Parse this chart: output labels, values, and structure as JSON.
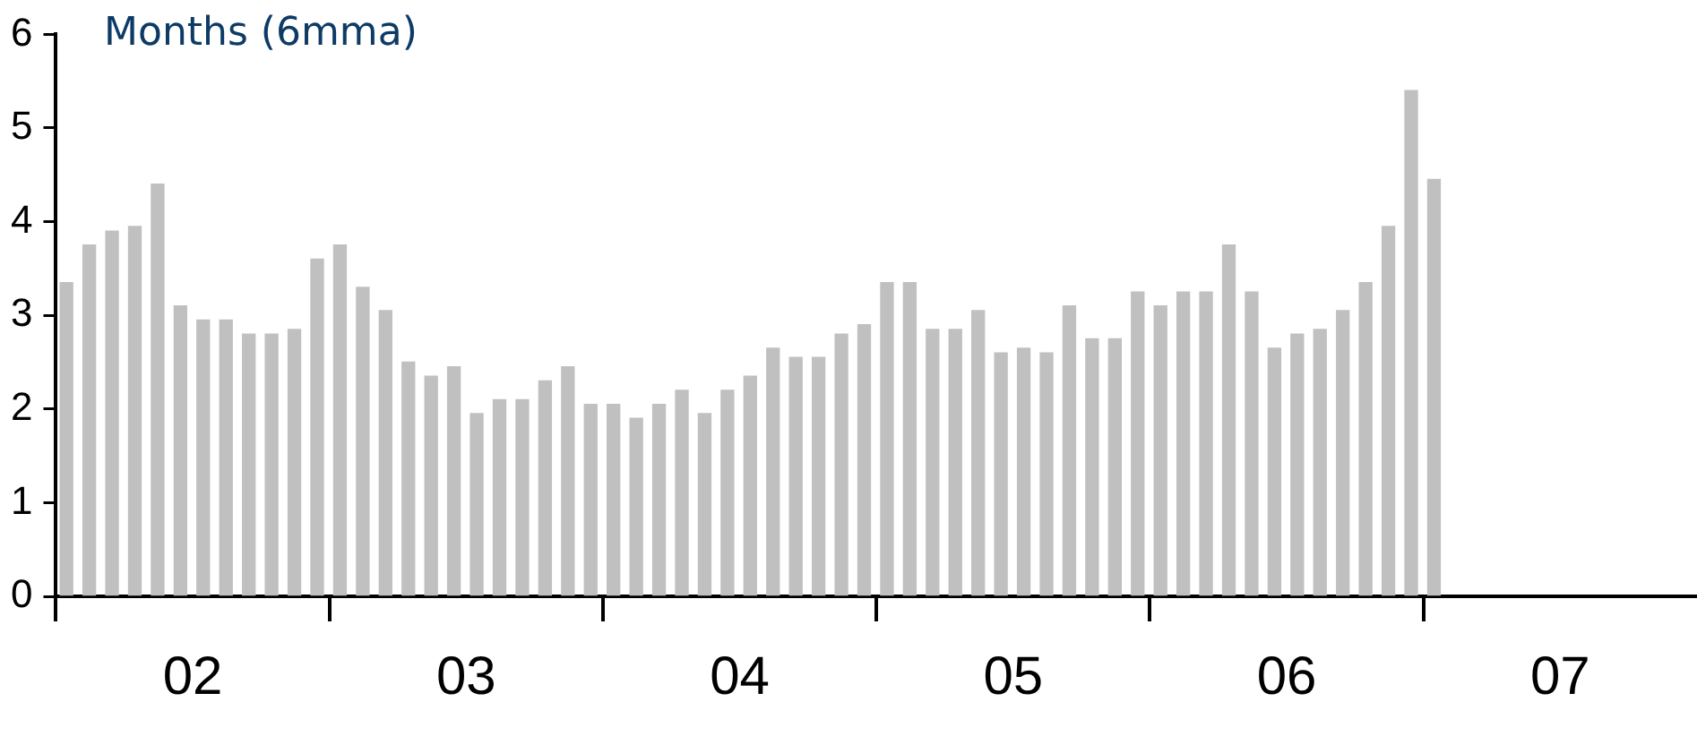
{
  "chart_data": {
    "type": "bar",
    "ylabel": "Months (6mma)",
    "x": [
      "2002-01-15",
      "2002-02-15",
      "2002-03-15",
      "2002-04-15",
      "2002-05-15",
      "2002-06-15",
      "2002-07-15",
      "2002-08-15",
      "2002-09-15",
      "2002-10-15",
      "2002-11-15",
      "2002-12-15",
      "2003-01-15",
      "2003-02-15",
      "2003-03-15",
      "2003-04-15",
      "2003-05-15",
      "2003-06-15",
      "2003-07-15",
      "2003-08-15",
      "2003-09-15",
      "2003-10-15",
      "2003-11-15",
      "2003-12-15",
      "2004-01-15",
      "2004-02-15",
      "2004-03-15",
      "2004-04-15",
      "2004-05-15",
      "2004-06-15",
      "2004-07-15",
      "2004-08-15",
      "2004-09-15",
      "2004-10-15",
      "2004-11-15",
      "2004-12-15",
      "2005-01-15",
      "2005-02-15",
      "2005-03-15",
      "2005-04-15",
      "2005-05-15",
      "2005-06-15",
      "2005-07-15",
      "2005-08-15",
      "2005-09-15",
      "2005-10-15",
      "2005-11-15",
      "2005-12-15",
      "2006-01-15",
      "2006-02-15",
      "2006-03-15",
      "2006-04-15",
      "2006-05-15",
      "2006-06-15",
      "2006-07-15",
      "2006-08-15",
      "2006-09-15",
      "2006-10-15",
      "2006-11-15",
      "2006-12-15",
      "2007-01-15"
    ],
    "values": [
      3.35,
      3.75,
      3.9,
      3.95,
      4.4,
      3.1,
      2.95,
      2.95,
      2.8,
      2.8,
      2.85,
      3.6,
      3.75,
      3.3,
      3.05,
      2.5,
      2.35,
      2.45,
      1.95,
      2.1,
      2.1,
      2.3,
      2.45,
      2.05,
      2.05,
      1.9,
      2.05,
      2.2,
      1.95,
      2.2,
      2.35,
      2.65,
      2.55,
      2.55,
      2.8,
      2.9,
      3.35,
      3.35,
      2.85,
      2.85,
      3.05,
      2.6,
      2.65,
      2.6,
      3.1,
      2.75,
      2.75,
      3.25,
      3.1,
      3.25,
      3.25,
      3.75,
      3.25,
      2.65,
      2.8,
      2.85,
      3.05,
      3.35,
      3.95,
      5.4,
      4.45
    ],
    "color": "#c0c0c0",
    "xlim": [
      "2002-01",
      "2008-01"
    ],
    "xticks": [
      {
        "value": "2002-01",
        "label": null
      },
      {
        "value": "2002-07",
        "label": "02"
      },
      {
        "value": "2003-01",
        "label": null
      },
      {
        "value": "2003-07",
        "label": "03"
      },
      {
        "value": "2004-01",
        "label": null
      },
      {
        "value": "2004-07",
        "label": "04"
      },
      {
        "value": "2005-01",
        "label": null
      },
      {
        "value": "2005-07",
        "label": "05"
      },
      {
        "value": "2006-01",
        "label": null
      },
      {
        "value": "2006-07",
        "label": "06"
      },
      {
        "value": "2007-01",
        "label": null
      },
      {
        "value": "2007-07",
        "label": "07"
      }
    ],
    "ylim": [
      0,
      6
    ],
    "yticks": [
      0,
      1,
      2,
      3,
      4,
      5,
      6
    ],
    "grid": false,
    "legend": false
  }
}
